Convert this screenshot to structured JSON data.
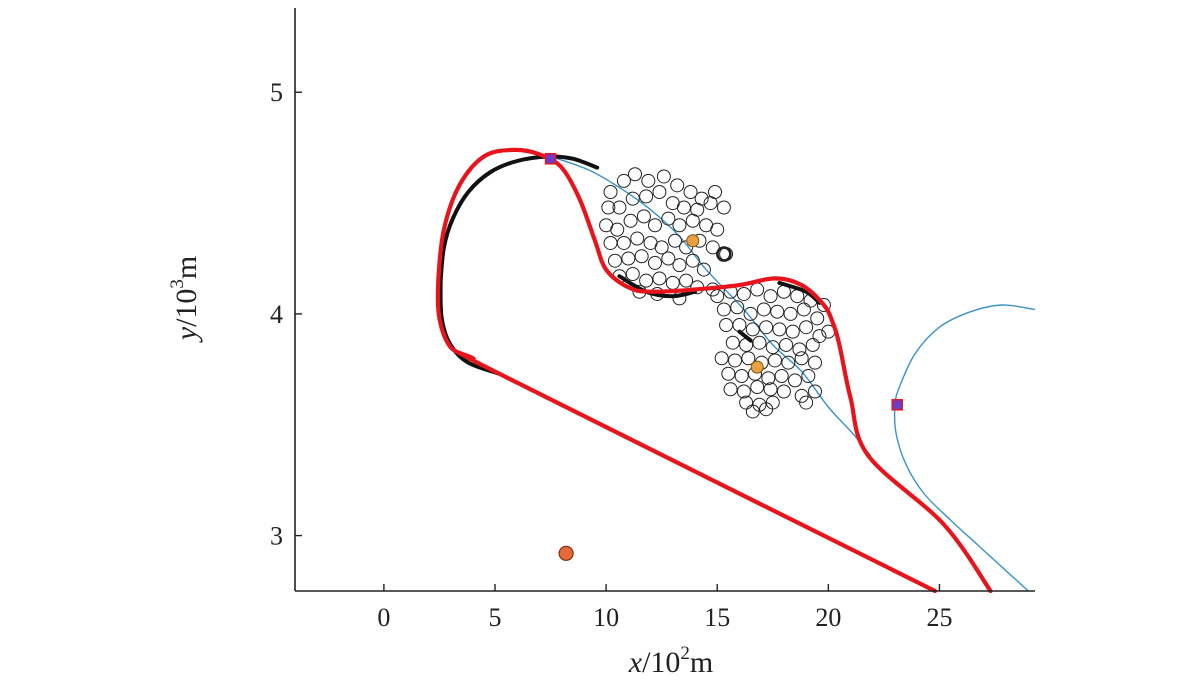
{
  "chart_data": {
    "type": "scatter",
    "xlabel": {
      "var": "x",
      "sep": "/10",
      "exp": "2",
      "unit": "m"
    },
    "ylabel": {
      "var": "y",
      "sep": "/10",
      "exp": "3",
      "unit": "m"
    },
    "xlim": [
      -4,
      29.3
    ],
    "ylim": [
      2.75,
      5.38
    ],
    "xticks": [
      0,
      5,
      10,
      15,
      20,
      25
    ],
    "yticks": [
      3,
      4,
      5
    ],
    "grid": false,
    "legend": "none",
    "colors": {
      "main_path": "#e8141c",
      "reference_path": "#3a93c8",
      "arc": "#111111",
      "targets": "#222222",
      "cluster_center": "#e8a040",
      "orange_point": "#e86a38",
      "waypoint_fill": "#6a3ec8",
      "waypoint_edge": "#e8141c"
    },
    "main_path": [
      [
        27.3,
        2.75
      ],
      [
        25.2,
        3.05
      ],
      [
        21.8,
        3.36
      ],
      [
        21.0,
        3.62
      ],
      [
        20.5,
        3.86
      ],
      [
        20.2,
        3.96
      ],
      [
        19.8,
        4.04
      ],
      [
        18.8,
        4.13
      ],
      [
        17.6,
        4.16
      ],
      [
        16.0,
        4.13
      ],
      [
        14.0,
        4.11
      ],
      [
        12.0,
        4.1
      ],
      [
        11.0,
        4.12
      ],
      [
        10.0,
        4.2
      ],
      [
        9.5,
        4.33
      ],
      [
        8.8,
        4.52
      ],
      [
        8.0,
        4.66
      ],
      [
        7.0,
        4.72
      ],
      [
        5.8,
        4.74
      ],
      [
        4.5,
        4.71
      ],
      [
        3.4,
        4.58
      ],
      [
        2.7,
        4.38
      ],
      [
        2.45,
        4.15
      ],
      [
        2.5,
        3.98
      ],
      [
        3.0,
        3.85
      ],
      [
        4.0,
        3.8
      ],
      [
        5.2,
        3.73
      ],
      [
        24.8,
        2.75
      ]
    ],
    "reference_path": [
      [
        7.5,
        4.71
      ],
      [
        9.2,
        4.65
      ],
      [
        10.6,
        4.57
      ],
      [
        12.0,
        4.47
      ],
      [
        13.3,
        4.35
      ],
      [
        14.5,
        4.2
      ],
      [
        16.2,
        4.02
      ],
      [
        17.5,
        3.86
      ],
      [
        18.8,
        3.74
      ],
      [
        20.0,
        3.58
      ],
      [
        21.1,
        3.46
      ],
      [
        21.9,
        3.36
      ]
    ],
    "reference_arc": [
      [
        29.3,
        4.02
      ],
      [
        27.8,
        4.04
      ],
      [
        26.4,
        4.01
      ],
      [
        25.0,
        3.94
      ],
      [
        23.9,
        3.82
      ],
      [
        23.2,
        3.67
      ],
      [
        23.0,
        3.59
      ],
      [
        23.05,
        3.46
      ],
      [
        23.5,
        3.32
      ],
      [
        24.3,
        3.19
      ],
      [
        25.5,
        3.07
      ],
      [
        26.7,
        2.96
      ],
      [
        27.9,
        2.85
      ],
      [
        29.0,
        2.75
      ]
    ],
    "arc_segments": [
      [
        [
          9.6,
          4.66
        ],
        [
          8.5,
          4.7
        ],
        [
          7.4,
          4.71
        ],
        [
          6.0,
          4.69
        ],
        [
          4.8,
          4.64
        ],
        [
          3.8,
          4.55
        ],
        [
          3.1,
          4.43
        ],
        [
          2.7,
          4.3
        ],
        [
          2.55,
          4.15
        ]
      ],
      [
        [
          2.55,
          4.15
        ],
        [
          2.6,
          3.98
        ],
        [
          3.0,
          3.86
        ],
        [
          3.8,
          3.78
        ],
        [
          5.2,
          3.73
        ]
      ],
      [
        [
          10.6,
          4.17
        ],
        [
          11.8,
          4.1
        ],
        [
          13.0,
          4.08
        ],
        [
          14.0,
          4.1
        ]
      ],
      [
        [
          16.0,
          3.92
        ],
        [
          16.5,
          3.88
        ]
      ],
      [
        [
          17.8,
          4.14
        ],
        [
          19.0,
          4.1
        ],
        [
          19.6,
          4.05
        ]
      ]
    ],
    "targets": [
      [
        10.2,
        4.55
      ],
      [
        10.8,
        4.6
      ],
      [
        11.3,
        4.63
      ],
      [
        11.9,
        4.6
      ],
      [
        12.6,
        4.62
      ],
      [
        13.2,
        4.58
      ],
      [
        13.8,
        4.55
      ],
      [
        14.3,
        4.52
      ],
      [
        14.9,
        4.55
      ],
      [
        10.1,
        4.48
      ],
      [
        10.6,
        4.48
      ],
      [
        11.2,
        4.52
      ],
      [
        11.8,
        4.53
      ],
      [
        12.4,
        4.55
      ],
      [
        13.0,
        4.5
      ],
      [
        13.5,
        4.48
      ],
      [
        14.1,
        4.47
      ],
      [
        14.7,
        4.5
      ],
      [
        15.3,
        4.48
      ],
      [
        10.0,
        4.4
      ],
      [
        10.5,
        4.38
      ],
      [
        11.1,
        4.42
      ],
      [
        11.7,
        4.44
      ],
      [
        12.2,
        4.4
      ],
      [
        12.8,
        4.43
      ],
      [
        13.3,
        4.4
      ],
      [
        13.9,
        4.42
      ],
      [
        14.5,
        4.4
      ],
      [
        15.0,
        4.38
      ],
      [
        10.2,
        4.32
      ],
      [
        10.8,
        4.32
      ],
      [
        11.4,
        4.34
      ],
      [
        12.0,
        4.32
      ],
      [
        12.5,
        4.3
      ],
      [
        13.1,
        4.33
      ],
      [
        13.6,
        4.3
      ],
      [
        14.2,
        4.33
      ],
      [
        14.8,
        4.3
      ],
      [
        10.4,
        4.24
      ],
      [
        11.0,
        4.25
      ],
      [
        11.6,
        4.26
      ],
      [
        12.2,
        4.23
      ],
      [
        12.8,
        4.25
      ],
      [
        13.3,
        4.22
      ],
      [
        13.9,
        4.24
      ],
      [
        14.4,
        4.2
      ],
      [
        10.6,
        4.17
      ],
      [
        11.2,
        4.18
      ],
      [
        11.8,
        4.15
      ],
      [
        12.4,
        4.16
      ],
      [
        13.0,
        4.14
      ],
      [
        13.6,
        4.15
      ],
      [
        14.1,
        4.12
      ],
      [
        11.5,
        4.1
      ],
      [
        12.3,
        4.09
      ],
      [
        13.3,
        4.07
      ],
      [
        14.8,
        4.11
      ],
      [
        15.4,
        4.27
      ],
      [
        15.0,
        4.08
      ],
      [
        15.6,
        4.1
      ],
      [
        16.2,
        4.09
      ],
      [
        16.8,
        4.11
      ],
      [
        17.4,
        4.08
      ],
      [
        18.0,
        4.1
      ],
      [
        18.6,
        4.08
      ],
      [
        19.2,
        4.06
      ],
      [
        19.8,
        4.04
      ],
      [
        15.3,
        4.02
      ],
      [
        15.9,
        4.03
      ],
      [
        16.5,
        4.0
      ],
      [
        17.1,
        4.02
      ],
      [
        17.7,
        4.01
      ],
      [
        18.3,
        4.0
      ],
      [
        18.9,
        4.02
      ],
      [
        19.5,
        3.98
      ],
      [
        15.4,
        3.95
      ],
      [
        16.0,
        3.95
      ],
      [
        16.6,
        3.93
      ],
      [
        17.2,
        3.94
      ],
      [
        17.8,
        3.93
      ],
      [
        18.4,
        3.92
      ],
      [
        19.0,
        3.94
      ],
      [
        19.6,
        3.9
      ],
      [
        20.0,
        3.92
      ],
      [
        15.7,
        3.87
      ],
      [
        16.3,
        3.86
      ],
      [
        16.9,
        3.87
      ],
      [
        17.5,
        3.85
      ],
      [
        18.1,
        3.86
      ],
      [
        18.7,
        3.84
      ],
      [
        19.3,
        3.86
      ],
      [
        15.2,
        3.8
      ],
      [
        15.8,
        3.79
      ],
      [
        16.4,
        3.8
      ],
      [
        17.0,
        3.78
      ],
      [
        17.6,
        3.79
      ],
      [
        18.2,
        3.78
      ],
      [
        18.8,
        3.8
      ],
      [
        19.4,
        3.78
      ],
      [
        15.5,
        3.73
      ],
      [
        16.1,
        3.72
      ],
      [
        16.7,
        3.73
      ],
      [
        17.3,
        3.71
      ],
      [
        17.9,
        3.72
      ],
      [
        18.5,
        3.7
      ],
      [
        19.1,
        3.72
      ],
      [
        15.6,
        3.66
      ],
      [
        16.2,
        3.65
      ],
      [
        16.8,
        3.67
      ],
      [
        17.4,
        3.66
      ],
      [
        18.0,
        3.65
      ],
      [
        18.8,
        3.63
      ],
      [
        19.4,
        3.65
      ],
      [
        16.3,
        3.6
      ],
      [
        16.9,
        3.59
      ],
      [
        17.5,
        3.6
      ],
      [
        19.0,
        3.6
      ],
      [
        16.6,
        3.56
      ],
      [
        17.2,
        3.57
      ]
    ],
    "bold_targets": [
      [
        15.3,
        4.27
      ]
    ],
    "cluster_centers": [
      [
        13.9,
        4.33
      ],
      [
        16.8,
        3.76
      ]
    ],
    "orange_point": [
      8.2,
      2.92
    ],
    "waypoints": [
      [
        7.5,
        4.7
      ],
      [
        23.1,
        3.59
      ]
    ]
  }
}
